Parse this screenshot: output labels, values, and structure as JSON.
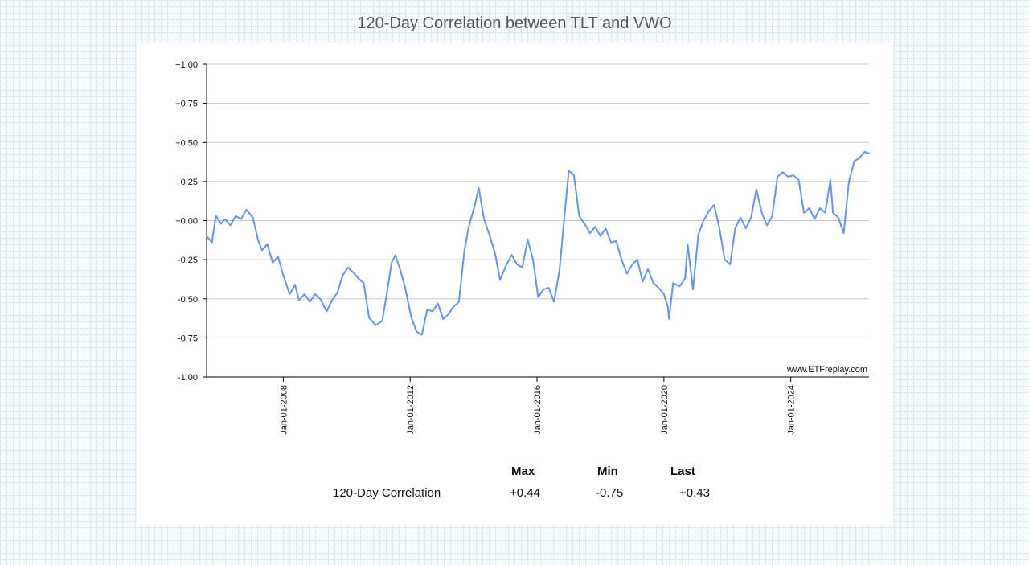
{
  "page": {
    "title": "120-Day Correlation between TLT and VWO",
    "watermark": "www.ETFreplay.com"
  },
  "chart_data": {
    "type": "line",
    "title": "120-Day Correlation between TLT and VWO",
    "xlabel": "",
    "ylabel": "",
    "ylim": [
      -1,
      1
    ],
    "xlim": [
      "2005-08-01",
      "2026-06-20"
    ],
    "yticks": [
      "+1.00",
      "+0.75",
      "+0.50",
      "+0.25",
      "+0.00",
      "-0.25",
      "-0.50",
      "-0.75",
      "-1.00"
    ],
    "ytick_values": [
      1,
      0.75,
      0.5,
      0.25,
      0,
      -0.25,
      -0.5,
      -0.75,
      -1
    ],
    "xticks": [
      "Jan-01-2008",
      "Jan-01-2012",
      "Jan-01-2016",
      "Jan-01-2020",
      "Jan-01-2024"
    ],
    "xtick_dates": [
      "2008-01-01",
      "2012-01-01",
      "2016-01-01",
      "2020-01-01",
      "2024-01-01"
    ],
    "grid": true,
    "legend": "none",
    "line_color": "#6495ed",
    "series": [
      {
        "points": [
          [
            "2005-08-01",
            -0.1
          ],
          [
            "2005-10-01",
            -0.14
          ],
          [
            "2005-11-15",
            0.03
          ],
          [
            "2006-01-15",
            -0.02
          ],
          [
            "2006-03-01",
            0.01
          ],
          [
            "2006-05-01",
            -0.03
          ],
          [
            "2006-07-01",
            0.03
          ],
          [
            "2006-09-01",
            0.01
          ],
          [
            "2006-11-01",
            0.07
          ],
          [
            "2007-01-15",
            0.02
          ],
          [
            "2007-03-15",
            -0.12
          ],
          [
            "2007-05-01",
            -0.19
          ],
          [
            "2007-07-01",
            -0.15
          ],
          [
            "2007-09-01",
            -0.27
          ],
          [
            "2007-11-01",
            -0.23
          ],
          [
            "2008-01-01",
            -0.35
          ],
          [
            "2008-03-15",
            -0.47
          ],
          [
            "2008-05-15",
            -0.41
          ],
          [
            "2008-07-01",
            -0.51
          ],
          [
            "2008-09-01",
            -0.47
          ],
          [
            "2008-11-01",
            -0.52
          ],
          [
            "2009-01-01",
            -0.47
          ],
          [
            "2009-03-01",
            -0.5
          ],
          [
            "2009-05-15",
            -0.58
          ],
          [
            "2009-07-15",
            -0.51
          ],
          [
            "2009-09-15",
            -0.46
          ],
          [
            "2009-11-15",
            -0.35
          ],
          [
            "2010-01-15",
            -0.3
          ],
          [
            "2010-03-15",
            -0.33
          ],
          [
            "2010-05-15",
            -0.37
          ],
          [
            "2010-07-15",
            -0.4
          ],
          [
            "2010-09-15",
            -0.62
          ],
          [
            "2010-12-01",
            -0.67
          ],
          [
            "2011-02-15",
            -0.64
          ],
          [
            "2011-04-15",
            -0.44
          ],
          [
            "2011-06-01",
            -0.27
          ],
          [
            "2011-07-15",
            -0.22
          ],
          [
            "2011-09-01",
            -0.3
          ],
          [
            "2011-11-01",
            -0.42
          ],
          [
            "2012-01-15",
            -0.62
          ],
          [
            "2012-03-15",
            -0.71
          ],
          [
            "2012-05-15",
            -0.73
          ],
          [
            "2012-07-15",
            -0.57
          ],
          [
            "2012-09-15",
            -0.58
          ],
          [
            "2012-11-15",
            -0.53
          ],
          [
            "2013-01-15",
            -0.63
          ],
          [
            "2013-03-15",
            -0.6
          ],
          [
            "2013-05-15",
            -0.55
          ],
          [
            "2013-07-15",
            -0.52
          ],
          [
            "2013-09-15",
            -0.2
          ],
          [
            "2013-11-01",
            -0.05
          ],
          [
            "2014-01-15",
            0.1
          ],
          [
            "2014-03-01",
            0.21
          ],
          [
            "2014-05-01",
            0.01
          ],
          [
            "2014-07-01",
            -0.09
          ],
          [
            "2014-09-01",
            -0.2
          ],
          [
            "2014-11-01",
            -0.38
          ],
          [
            "2015-01-15",
            -0.28
          ],
          [
            "2015-03-15",
            -0.22
          ],
          [
            "2015-05-15",
            -0.28
          ],
          [
            "2015-07-15",
            -0.3
          ],
          [
            "2015-09-15",
            -0.12
          ],
          [
            "2015-11-15",
            -0.25
          ],
          [
            "2016-01-15",
            -0.49
          ],
          [
            "2016-03-15",
            -0.44
          ],
          [
            "2016-05-15",
            -0.43
          ],
          [
            "2016-07-15",
            -0.52
          ],
          [
            "2016-09-15",
            -0.32
          ],
          [
            "2016-11-15",
            0.05
          ],
          [
            "2017-01-01",
            0.32
          ],
          [
            "2017-03-01",
            0.29
          ],
          [
            "2017-05-01",
            0.03
          ],
          [
            "2017-07-01",
            -0.02
          ],
          [
            "2017-09-01",
            -0.08
          ],
          [
            "2017-11-01",
            -0.04
          ],
          [
            "2018-01-01",
            -0.1
          ],
          [
            "2018-03-01",
            -0.05
          ],
          [
            "2018-05-01",
            -0.14
          ],
          [
            "2018-07-01",
            -0.13
          ],
          [
            "2018-09-01",
            -0.25
          ],
          [
            "2018-11-01",
            -0.34
          ],
          [
            "2019-01-01",
            -0.28
          ],
          [
            "2019-03-01",
            -0.25
          ],
          [
            "2019-05-01",
            -0.39
          ],
          [
            "2019-07-01",
            -0.31
          ],
          [
            "2019-09-01",
            -0.4
          ],
          [
            "2019-11-01",
            -0.43
          ],
          [
            "2020-01-01",
            -0.47
          ],
          [
            "2020-02-15",
            -0.55
          ],
          [
            "2020-03-01",
            -0.63
          ],
          [
            "2020-04-15",
            -0.4
          ],
          [
            "2020-07-01",
            -0.42
          ],
          [
            "2020-09-01",
            -0.37
          ],
          [
            "2020-10-01",
            -0.15
          ],
          [
            "2020-12-01",
            -0.44
          ],
          [
            "2021-02-01",
            -0.09
          ],
          [
            "2021-04-01",
            0.0
          ],
          [
            "2021-06-01",
            0.06
          ],
          [
            "2021-08-01",
            0.1
          ],
          [
            "2021-10-01",
            -0.05
          ],
          [
            "2021-12-01",
            -0.25
          ],
          [
            "2022-02-01",
            -0.28
          ],
          [
            "2022-04-01",
            -0.05
          ],
          [
            "2022-06-01",
            0.02
          ],
          [
            "2022-08-01",
            -0.05
          ],
          [
            "2022-10-01",
            0.02
          ],
          [
            "2022-12-01",
            0.2
          ],
          [
            "2023-02-01",
            0.05
          ],
          [
            "2023-04-01",
            -0.03
          ],
          [
            "2023-06-01",
            0.03
          ],
          [
            "2023-08-01",
            0.28
          ],
          [
            "2023-10-01",
            0.31
          ],
          [
            "2023-12-01",
            0.28
          ],
          [
            "2024-02-01",
            0.29
          ],
          [
            "2024-04-01",
            0.26
          ],
          [
            "2024-06-01",
            0.05
          ],
          [
            "2024-08-01",
            0.08
          ],
          [
            "2024-10-01",
            0.01
          ],
          [
            "2024-12-01",
            0.08
          ],
          [
            "2025-02-01",
            0.05
          ],
          [
            "2025-04-01",
            0.26
          ],
          [
            "2025-05-01",
            0.05
          ],
          [
            "2025-07-01",
            0.02
          ],
          [
            "2025-09-01",
            -0.08
          ],
          [
            "2025-11-01",
            0.25
          ],
          [
            "2026-01-01",
            0.38
          ],
          [
            "2026-03-01",
            0.4
          ],
          [
            "2026-05-01",
            0.44
          ],
          [
            "2026-06-20",
            0.43
          ]
        ]
      }
    ]
  },
  "stats": {
    "headers": [
      "Max",
      "Min",
      "Last"
    ],
    "rows": [
      {
        "label": "120-Day Correlation",
        "max": "+0.44",
        "min": "-0.75",
        "last": "+0.43"
      }
    ]
  }
}
